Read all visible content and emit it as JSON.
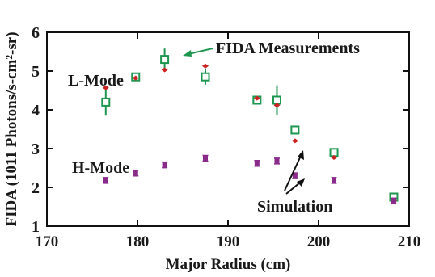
{
  "chart_data": {
    "type": "scatter",
    "xlabel": "Major Radius (cm)",
    "ylabel": "FIDA (1011 Photons/s-cm²-sr)",
    "xlim": [
      170,
      210
    ],
    "ylim": [
      1,
      6
    ],
    "x_ticks": [
      "170",
      "180",
      "190",
      "200",
      "210"
    ],
    "y_ticks": [
      "1",
      "2",
      "3",
      "4",
      "5",
      "6"
    ],
    "grid": false,
    "colors": {
      "lmode_measurement": "#1e9650",
      "lmode_simulation": "#cc2222",
      "hmode_simulation": "#8a2a8a",
      "hmode_measurement": "#8a2a8a",
      "axis": "#111111"
    },
    "series": [
      {
        "key": "lmode_measurement",
        "marker": "open-square",
        "points": [
          {
            "x": 176.5,
            "y": 4.2,
            "err": 0.35
          },
          {
            "x": 179.8,
            "y": 4.85,
            "err": 0.08
          },
          {
            "x": 183.0,
            "y": 5.3,
            "err": 0.28
          },
          {
            "x": 187.5,
            "y": 4.85,
            "err": 0.2
          },
          {
            "x": 193.2,
            "y": 4.25,
            "err": 0.08
          },
          {
            "x": 195.4,
            "y": 4.25,
            "err": 0.38
          },
          {
            "x": 197.4,
            "y": 3.48,
            "err": 0.07
          },
          {
            "x": 201.7,
            "y": 2.9,
            "err": 0.05
          },
          {
            "x": 208.3,
            "y": 1.75,
            "err": 0.05
          }
        ]
      },
      {
        "key": "lmode_simulation",
        "marker": "diamond",
        "points": [
          {
            "x": 176.5,
            "y": 4.57
          },
          {
            "x": 179.8,
            "y": 4.82
          },
          {
            "x": 183.0,
            "y": 5.03
          },
          {
            "x": 187.5,
            "y": 5.13
          },
          {
            "x": 193.2,
            "y": 4.3
          },
          {
            "x": 195.4,
            "y": 4.12
          },
          {
            "x": 197.4,
            "y": 3.2
          },
          {
            "x": 201.7,
            "y": 2.77
          },
          {
            "x": 208.3,
            "y": 1.65
          }
        ]
      },
      {
        "key": "hmode_measurement",
        "marker": "cross",
        "points": [
          {
            "x": 176.5,
            "y": 2.18
          },
          {
            "x": 179.8,
            "y": 2.37
          },
          {
            "x": 183.0,
            "y": 2.58
          },
          {
            "x": 187.5,
            "y": 2.75
          },
          {
            "x": 193.2,
            "y": 2.62
          },
          {
            "x": 195.4,
            "y": 2.68
          },
          {
            "x": 197.4,
            "y": 2.3
          },
          {
            "x": 201.7,
            "y": 2.18
          },
          {
            "x": 208.3,
            "y": 1.65
          }
        ]
      }
    ],
    "annotations": {
      "fida_measurements": "FIDA Measurements",
      "simulation": "Simulation",
      "lmode": "L-Mode",
      "hmode": "H-Mode"
    }
  }
}
